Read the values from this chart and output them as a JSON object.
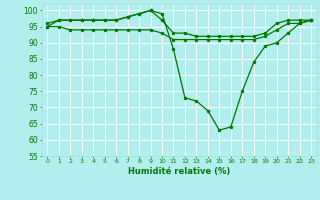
{
  "xlabel": "Humidité relative (%)",
  "x_ticks": [
    0,
    1,
    2,
    3,
    4,
    5,
    6,
    7,
    8,
    9,
    10,
    11,
    12,
    13,
    14,
    15,
    16,
    17,
    18,
    19,
    20,
    21,
    22,
    23
  ],
  "ylim": [
    55,
    102
  ],
  "yticks": [
    55,
    60,
    65,
    70,
    75,
    80,
    85,
    90,
    95,
    100
  ],
  "background_color": "#b3eeee",
  "grid_color": "#ddffff",
  "line_color": "#007700",
  "line1_x": [
    0,
    1,
    2,
    3,
    4,
    5,
    6,
    7,
    8,
    9,
    10,
    11,
    12,
    13,
    14,
    15,
    16,
    17,
    18,
    19,
    20,
    21,
    22,
    23
  ],
  "line1_y": [
    95,
    97,
    97,
    97,
    97,
    97,
    97,
    98,
    99,
    100,
    99,
    88,
    73,
    72,
    69,
    63,
    64,
    75,
    84,
    89,
    90,
    93,
    96,
    97
  ],
  "line2_x": [
    0,
    1,
    2,
    3,
    4,
    5,
    6,
    7,
    8,
    9,
    10,
    11,
    12,
    13,
    14,
    15,
    16,
    17,
    18,
    19,
    20,
    21,
    22,
    23
  ],
  "line2_y": [
    96,
    97,
    97,
    97,
    97,
    97,
    97,
    98,
    99,
    100,
    97,
    93,
    93,
    92,
    92,
    92,
    92,
    92,
    92,
    93,
    96,
    97,
    97,
    97
  ],
  "line3_x": [
    0,
    1,
    2,
    3,
    4,
    5,
    6,
    7,
    8,
    9,
    10,
    11,
    12,
    13,
    14,
    15,
    16,
    17,
    18,
    19,
    20,
    21,
    22,
    23
  ],
  "line3_y": [
    95,
    95,
    94,
    94,
    94,
    94,
    94,
    94,
    94,
    94,
    93,
    91,
    91,
    91,
    91,
    91,
    91,
    91,
    91,
    92,
    94,
    96,
    96,
    97
  ]
}
